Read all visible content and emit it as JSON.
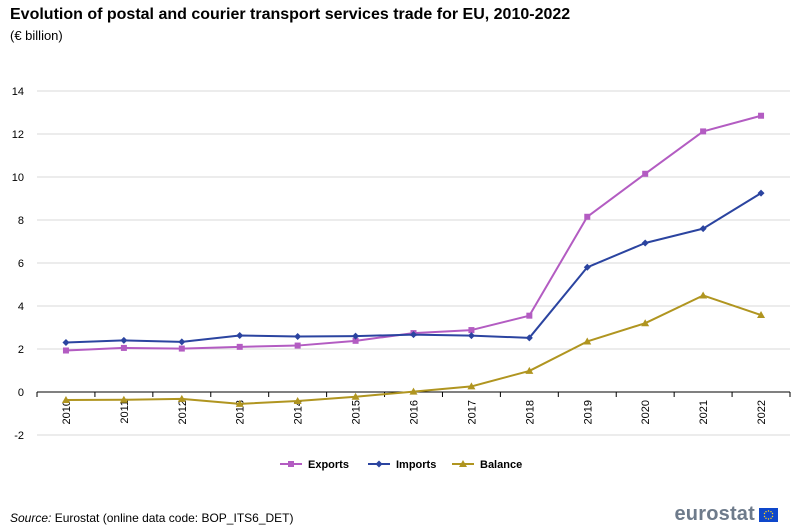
{
  "header": {
    "title": "Evolution of postal and courier transport services trade for EU, 2010-2022",
    "subtitle": "(€ billion)"
  },
  "footer": {
    "source_label": "Source:",
    "source_text": "Eurostat (online data code: BOP_ITS6_DET)",
    "logo_text": "eurostat"
  },
  "colors": {
    "exports": "#b35cc2",
    "imports": "#2b44a0",
    "balance": "#b09520",
    "grid": "#d9d9d9",
    "axis": "#000000",
    "logo": "#6e7b8b",
    "flag": "#0e47cb"
  },
  "chart_data": {
    "type": "line",
    "title": "Evolution of postal and courier transport services trade for EU, 2010-2022",
    "subtitle": "(€ billion)",
    "xlabel": "",
    "ylabel": "",
    "ylim": [
      -2,
      14
    ],
    "yticks": [
      -2,
      0,
      2,
      4,
      6,
      8,
      10,
      12,
      14
    ],
    "grid": true,
    "legend_position": "bottom",
    "categories": [
      "2010",
      "2011",
      "2012",
      "2013",
      "2014",
      "2015",
      "2016",
      "2017",
      "2018",
      "2019",
      "2020",
      "2021",
      "2022"
    ],
    "series": [
      {
        "name": "Exports",
        "marker": "square",
        "values": [
          1.93,
          2.05,
          2.02,
          2.1,
          2.16,
          2.38,
          2.74,
          2.88,
          3.55,
          8.15,
          10.15,
          12.12,
          12.85
        ]
      },
      {
        "name": "Imports",
        "marker": "diamond",
        "values": [
          2.3,
          2.4,
          2.33,
          2.63,
          2.58,
          2.6,
          2.67,
          2.62,
          2.52,
          5.8,
          6.93,
          7.6,
          9.25
        ]
      },
      {
        "name": "Balance",
        "marker": "triangle",
        "values": [
          -0.37,
          -0.36,
          -0.32,
          -0.55,
          -0.42,
          -0.22,
          0.02,
          0.26,
          0.98,
          2.35,
          3.2,
          4.49,
          3.58
        ]
      }
    ]
  }
}
